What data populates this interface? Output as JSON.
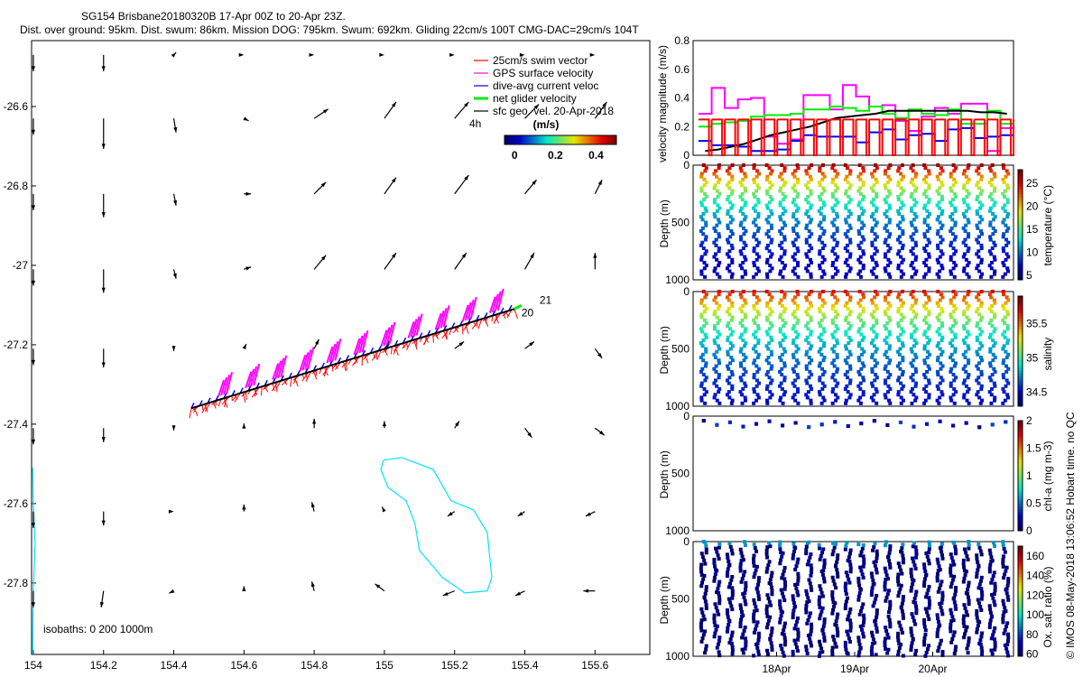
{
  "chart_data": [
    {
      "type": "scatter",
      "name": "map",
      "title": "SG154 Brisbane20180320B 17-Apr 00Z to 20-Apr 23Z.",
      "subtitle": "Dist. over ground: 95km. Dist. swum: 86km. Mission DOG: 795km. Swum: 692km. Gliding 22cm/s 100T CMG-DAC=29cm/s 104T",
      "xlim": [
        153.995,
        155.756
      ],
      "ylim": [
        -27.98,
        -26.434
      ],
      "xticks": [
        "154",
        "154.2",
        "154.4",
        "154.6",
        "154.8",
        "155",
        "155.2",
        "155.4",
        "155.6"
      ],
      "xtick_values": [
        154,
        154.2,
        154.4,
        154.6,
        154.8,
        155,
        155.2,
        155.4,
        155.6
      ],
      "yticks": [
        "-26.6",
        "-26.8",
        "-27",
        "-27.2",
        "-27.4",
        "-27.6",
        "-27.8"
      ],
      "ytick_values": [
        -26.6,
        -26.8,
        -27,
        -27.2,
        -27.4,
        -27.6,
        -27.8
      ],
      "legend": [
        "25cm/s swim vector",
        "GPS surface velocity",
        "dive-avg current veloc",
        "net glider velocity",
        "sfc geo. vel. 20-Apr-2018"
      ],
      "legend_colors": [
        "#ff0000",
        "#ff00ff",
        "#0000ff",
        "#00ee00",
        "#000000"
      ],
      "scale_label": "4h",
      "colorbar_title": "(m/s)",
      "colorbar_ticks": [
        "0",
        "0.2",
        "0.4"
      ],
      "colorbar_tick_values": [
        0,
        0.2,
        0.4
      ],
      "colorbar_range": [
        -0.05,
        0.5
      ],
      "isobath_label": "isobaths: 0   200  1000m",
      "track_start": [
        154.45,
        -27.36
      ],
      "track_end": [
        155.37,
        -27.11
      ],
      "track_labels": [
        "21",
        "20"
      ],
      "geo_vel_lons": [
        154.0,
        154.2,
        154.4,
        154.6,
        154.8,
        155.0,
        155.2,
        155.4,
        155.6
      ],
      "geo_vel_lats": [
        -26.47,
        -26.63,
        -26.82,
        -27.01,
        -27.21,
        -27.41,
        -27.62,
        -27.82
      ],
      "geo_vel_u": [
        [
          0,
          0,
          0.01,
          0,
          0,
          0,
          0,
          0,
          0
        ],
        [
          0,
          0,
          0.01,
          0.02,
          0.06,
          0.05,
          0.06,
          0.06,
          0.05
        ],
        [
          0,
          0,
          0.01,
          0.03,
          0.05,
          0.05,
          0.06,
          0.05,
          0.03
        ],
        [
          0,
          0,
          0.01,
          0.03,
          0.05,
          0.05,
          0.05,
          0.04,
          0
        ],
        [
          0,
          0,
          0,
          0.01,
          0.02,
          0.03,
          0.04,
          0.04,
          0.03
        ],
        [
          0,
          0,
          0,
          0,
          0,
          0,
          0.02,
          0.03,
          0.04
        ],
        [
          0,
          0,
          0,
          0,
          -0.01,
          -0.01,
          -0.03,
          -0.03,
          -0.04
        ],
        [
          0,
          -0.01,
          -0.02,
          0,
          -0.01,
          -0.04,
          -0.05,
          -0.04,
          -0.05
        ]
      ],
      "geo_vel_v": [
        [
          -0.07,
          -0.07,
          0.01,
          0,
          0,
          0,
          0,
          0,
          0
        ],
        [
          -0.07,
          -0.13,
          -0.06,
          -0.01,
          0.04,
          0.07,
          0.07,
          0.06,
          0.07
        ],
        [
          -0.07,
          -0.1,
          -0.05,
          0,
          0.05,
          0.07,
          0.08,
          0.06,
          0.06
        ],
        [
          -0.07,
          -0.1,
          -0.04,
          0.01,
          0.06,
          0.07,
          0.07,
          0.07,
          0.07
        ],
        [
          -0.07,
          -0.08,
          -0.01,
          0.02,
          0.04,
          0.04,
          0.03,
          0.03,
          -0.04
        ],
        [
          -0.07,
          -0.06,
          -0.01,
          0.02,
          0.04,
          0.03,
          0.03,
          -0.04,
          -0.03
        ],
        [
          -0.07,
          -0.06,
          0,
          0.03,
          0.04,
          0.02,
          -0.02,
          -0.02,
          -0.02
        ],
        [
          -0.07,
          -0.07,
          -0.01,
          0.02,
          0.04,
          0.03,
          -0.02,
          -0.02,
          0
        ]
      ],
      "isobath_offshore": [
        [
          154.997,
          -27.491
        ],
        [
          155.049,
          -27.484
        ],
        [
          155.139,
          -27.514
        ],
        [
          155.19,
          -27.593
        ],
        [
          155.254,
          -27.616
        ],
        [
          155.293,
          -27.673
        ],
        [
          155.306,
          -27.786
        ],
        [
          155.293,
          -27.82
        ],
        [
          155.229,
          -27.825
        ],
        [
          155.165,
          -27.786
        ],
        [
          155.1,
          -27.718
        ],
        [
          155.087,
          -27.65
        ],
        [
          155.062,
          -27.593
        ],
        [
          155.01,
          -27.559
        ],
        [
          154.99,
          -27.514
        ],
        [
          154.997,
          -27.491
        ]
      ],
      "isobath_coast": [
        [
          153.998,
          -27.51
        ],
        [
          154.0,
          -27.6
        ],
        [
          154.005,
          -27.7
        ],
        [
          154.0,
          -27.82
        ],
        [
          153.998,
          -27.98
        ]
      ]
    },
    {
      "type": "line",
      "name": "velocity",
      "ylabel": "velocity magnitude (m/s)",
      "ylim": [
        0,
        0.8
      ],
      "yticks": [
        "0",
        "0.2",
        "0.4",
        "0.6",
        "0.8"
      ],
      "ytick_values": [
        0,
        0.2,
        0.4,
        0.6,
        0.8
      ],
      "x_days_range": [
        0,
        4
      ],
      "series": [
        {
          "name": "GPS surface velocity",
          "color": "#ff00ff",
          "values": [
            0.29,
            0.47,
            0.33,
            0.39,
            0.4,
            0.13,
            0.08,
            0.11,
            0.42,
            0.42,
            0.32,
            0.49,
            0.41,
            0.34,
            0.35,
            0.24,
            0.17,
            0.27,
            0.33,
            0.29,
            0.36,
            0.36,
            0.03,
            0.19
          ]
        },
        {
          "name": "net glider velocity",
          "color": "#00ee00",
          "values": [
            0.2,
            0.22,
            0.23,
            0.24,
            0.27,
            0.28,
            0.28,
            0.29,
            0.32,
            0.32,
            0.34,
            0.33,
            0.31,
            0.34,
            0.29,
            0.26,
            0.32,
            0.29,
            0.28,
            0.32,
            0.22,
            0.22,
            0.31,
            0.22
          ]
        },
        {
          "name": "dive-avg current veloc",
          "color": "#0000ff",
          "values": [
            0.1,
            0.07,
            0.07,
            0.06,
            0.03,
            0.03,
            0.04,
            0.1,
            0.14,
            0.13,
            0.13,
            0.13,
            0.09,
            0.16,
            0.18,
            0.11,
            0.14,
            0.15,
            0.1,
            0.18,
            0.19,
            0.12,
            0.13,
            0.14
          ]
        },
        {
          "name": "sfc geo. vel.",
          "color": "#000000",
          "values": [
            0.03,
            0.04,
            0.06,
            0.08,
            0.11,
            0.14,
            0.16,
            0.18,
            0.2,
            0.23,
            0.26,
            0.27,
            0.28,
            0.29,
            0.31,
            0.31,
            0.31,
            0.31,
            0.31,
            0.31,
            0.31,
            0.3,
            0.3,
            0.29
          ]
        },
        {
          "name": "25cm/s swim vector",
          "color": "#ff0000",
          "values": [
            0.25,
            0.25,
            0.25,
            0.25,
            0.25,
            0.25,
            0.25,
            0.25,
            0.25,
            0.25,
            0.25,
            0.25,
            0.25,
            0.25,
            0.25,
            0.25,
            0.25,
            0.25,
            0.25,
            0.25,
            0.25,
            0.25,
            0.25,
            0.25
          ]
        }
      ]
    },
    {
      "type": "scatter",
      "name": "temperature",
      "ylabel": "Depth (m)",
      "yticks": [
        "0",
        "500",
        "1000"
      ],
      "ylim": [
        1000,
        0
      ],
      "cbar_label": "temperature (°C)",
      "cbar_ticks": [
        "5",
        "10",
        "15",
        "20",
        "25"
      ],
      "cbar_tick_values": [
        5,
        10,
        15,
        20,
        25
      ],
      "cbar_range": [
        4,
        28
      ],
      "surface_value": 27,
      "deep_value": 5,
      "dives": 24
    },
    {
      "type": "scatter",
      "name": "salinity",
      "ylabel": "Depth (m)",
      "yticks": [
        "0",
        "500",
        "1000"
      ],
      "ylim": [
        1000,
        0
      ],
      "cbar_label": "salinity",
      "cbar_ticks": [
        "34.5",
        "35",
        "35.5"
      ],
      "cbar_tick_values": [
        34.5,
        35,
        35.5
      ],
      "cbar_range": [
        34.3,
        35.9
      ],
      "surface_value": 35.7,
      "deep_value": 34.4,
      "dives": 24
    },
    {
      "type": "scatter",
      "name": "chl-a",
      "ylabel": "Depth (m)",
      "yticks": [
        "0",
        "500",
        "1000"
      ],
      "ylim": [
        1000,
        0
      ],
      "cbar_label": "chl-a (mg m-3)",
      "cbar_ticks": [
        "0",
        "0.5",
        "1",
        "1.5",
        "2"
      ],
      "cbar_tick_values": [
        0,
        0.5,
        1,
        1.5,
        2
      ],
      "cbar_range": [
        0,
        2
      ],
      "surface_value": 0.1,
      "deep_value": 0.05,
      "dives": 24
    },
    {
      "type": "scatter",
      "name": "oxygen",
      "ylabel": "Depth (m)",
      "yticks": [
        "0",
        "500",
        "1000"
      ],
      "ylim": [
        1000,
        0
      ],
      "cbar_label": "Ox. sat. ratio (%)",
      "cbar_ticks": [
        "60",
        "80",
        "100",
        "120",
        "140",
        "160"
      ],
      "cbar_tick_values": [
        60,
        80,
        100,
        120,
        140,
        160
      ],
      "cbar_range": [
        58,
        170
      ],
      "surface_value": 80,
      "deep_value": 60,
      "dives": 24
    }
  ],
  "time_axis": {
    "labels": [
      "18Apr",
      "19Apr",
      "20Apr"
    ],
    "days": [
      1,
      2,
      3
    ]
  },
  "footer": "© IMOS 08-May-2018 13:06:52 Hobart time. no QC"
}
